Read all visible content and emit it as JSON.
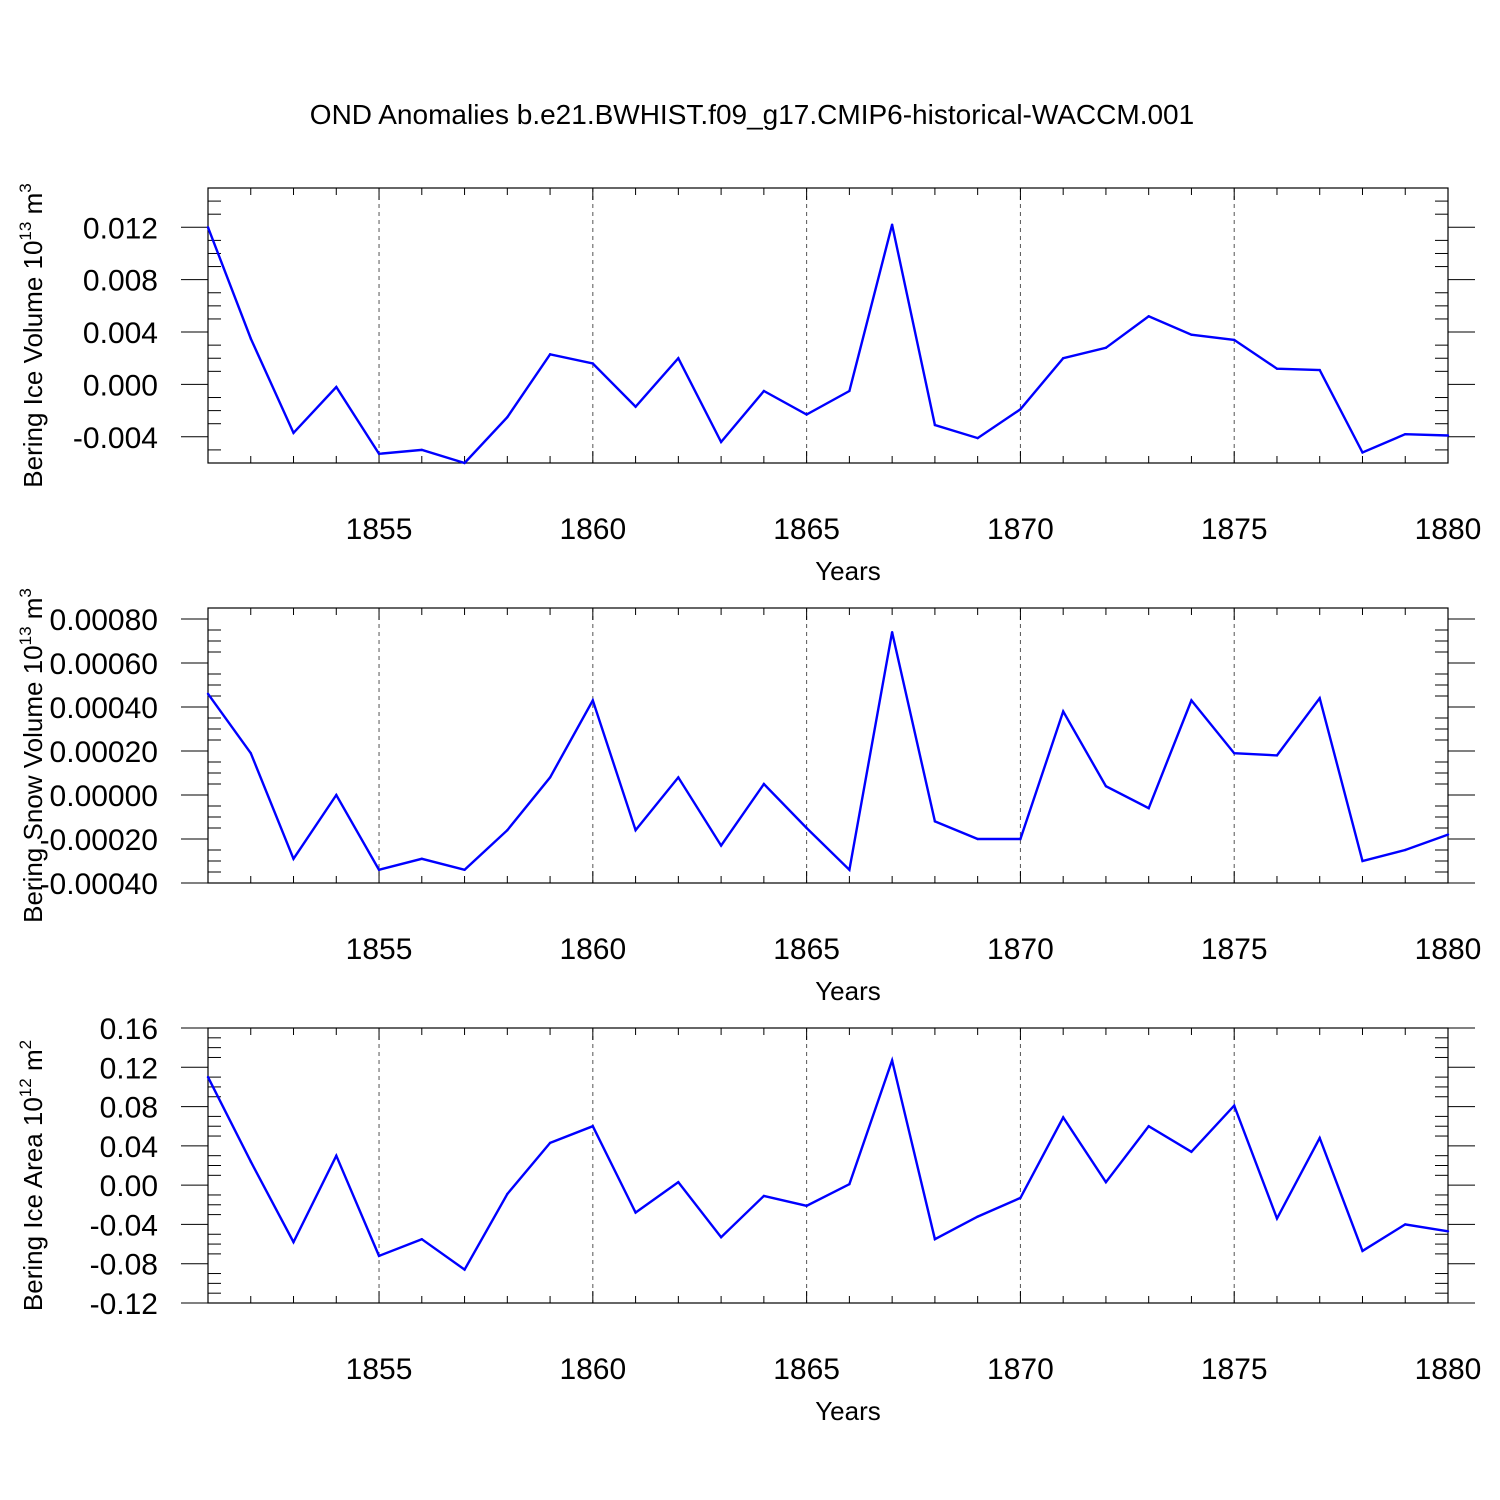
{
  "figure": {
    "title": "OND Anomalies b.e21.BWHIST.f09_g17.CMIP6-historical-WACCM.001"
  },
  "chart_data": [
    {
      "type": "line",
      "xlabel": "Years",
      "ylabel": "Bering Ice Volume 10",
      "ylabel_exp": "13",
      "ylabel_unit": " m",
      "ylabel_unit_exp": "3",
      "xlim": [
        1851,
        1880
      ],
      "ylim": [
        -0.006,
        0.015
      ],
      "xticks": [
        1855,
        1860,
        1865,
        1870,
        1875,
        1880
      ],
      "yticks": [
        -0.004,
        0.0,
        0.004,
        0.008,
        0.012
      ],
      "ytick_labels": [
        "-0.004",
        "0.000",
        "0.004",
        "0.008",
        "0.012"
      ],
      "grid": "vertical dashed at major x ticks",
      "line_color": "#0000ff",
      "x": [
        1851,
        1852,
        1853,
        1854,
        1855,
        1856,
        1857,
        1858,
        1859,
        1860,
        1861,
        1862,
        1863,
        1864,
        1865,
        1866,
        1867,
        1868,
        1869,
        1870,
        1871,
        1872,
        1873,
        1874,
        1875,
        1876,
        1877,
        1878,
        1879,
        1880
      ],
      "values": [
        0.012,
        0.0035,
        -0.0037,
        -0.0002,
        -0.0053,
        -0.005,
        -0.006,
        -0.0025,
        0.0023,
        0.0016,
        -0.0017,
        0.002,
        -0.0044,
        -0.0005,
        -0.0023,
        -0.0005,
        0.0122,
        -0.0031,
        -0.0041,
        -0.0019,
        0.002,
        0.0028,
        0.0052,
        0.0038,
        0.0034,
        0.0012,
        0.0011,
        -0.0052,
        -0.0038,
        -0.0039
      ]
    },
    {
      "type": "line",
      "xlabel": "Years",
      "ylabel": "Bering Snow Volume 10",
      "ylabel_exp": "13",
      "ylabel_unit": " m",
      "ylabel_unit_exp": "3",
      "xlim": [
        1851,
        1880
      ],
      "ylim": [
        -0.0004,
        0.00085
      ],
      "xticks": [
        1855,
        1860,
        1865,
        1870,
        1875,
        1880
      ],
      "yticks": [
        -0.0004,
        -0.0002,
        0.0,
        0.0002,
        0.0004,
        0.0006,
        0.0008
      ],
      "ytick_labels": [
        "-0.00040",
        "-0.00020",
        "0.00000",
        "0.00020",
        "0.00040",
        "0.00060",
        "0.00080"
      ],
      "grid": "vertical dashed at major x ticks",
      "line_color": "#0000ff",
      "x": [
        1851,
        1852,
        1853,
        1854,
        1855,
        1856,
        1857,
        1858,
        1859,
        1860,
        1861,
        1862,
        1863,
        1864,
        1865,
        1866,
        1867,
        1868,
        1869,
        1870,
        1871,
        1872,
        1873,
        1874,
        1875,
        1876,
        1877,
        1878,
        1879,
        1880
      ],
      "values": [
        0.00046,
        0.00019,
        -0.00029,
        0.0,
        -0.00034,
        -0.00029,
        -0.00034,
        -0.00016,
        8e-05,
        0.00043,
        -0.00016,
        8e-05,
        -0.00023,
        5e-05,
        -0.00015,
        -0.00034,
        0.00074,
        -0.00012,
        -0.0002,
        -0.0002,
        0.00038,
        4e-05,
        -6e-05,
        0.00043,
        0.00019,
        0.00018,
        0.00044,
        -0.0003,
        -0.00025,
        -0.00018
      ]
    },
    {
      "type": "line",
      "xlabel": "Years",
      "ylabel": "Bering Ice Area 10",
      "ylabel_exp": "12",
      "ylabel_unit": " m",
      "ylabel_unit_exp": "2",
      "xlim": [
        1851,
        1880
      ],
      "ylim": [
        -0.12,
        0.16
      ],
      "xticks": [
        1855,
        1860,
        1865,
        1870,
        1875,
        1880
      ],
      "yticks": [
        -0.12,
        -0.08,
        -0.04,
        0.0,
        0.04,
        0.08,
        0.12,
        0.16
      ],
      "ytick_labels": [
        "-0.12",
        "-0.08",
        "-0.04",
        "0.00",
        "0.04",
        "0.08",
        "0.12",
        "0.16"
      ],
      "grid": "vertical dashed at major x ticks",
      "line_color": "#0000ff",
      "x": [
        1851,
        1852,
        1853,
        1854,
        1855,
        1856,
        1857,
        1858,
        1859,
        1860,
        1861,
        1862,
        1863,
        1864,
        1865,
        1866,
        1867,
        1868,
        1869,
        1870,
        1871,
        1872,
        1873,
        1874,
        1875,
        1876,
        1877,
        1878,
        1879,
        1880
      ],
      "values": [
        0.11,
        0.024,
        -0.058,
        0.03,
        -0.072,
        -0.055,
        -0.086,
        -0.009,
        0.043,
        0.06,
        -0.028,
        0.003,
        -0.053,
        -0.011,
        -0.021,
        0.001,
        0.127,
        -0.055,
        -0.032,
        -0.013,
        0.069,
        0.003,
        0.06,
        0.034,
        0.081,
        -0.034,
        0.048,
        -0.067,
        -0.04,
        -0.047
      ]
    }
  ]
}
